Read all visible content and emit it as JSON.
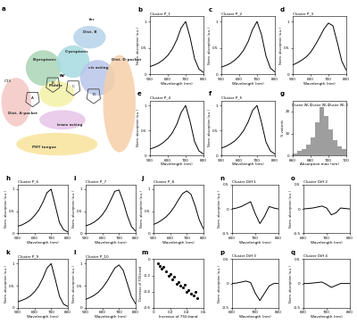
{
  "diagram": {
    "panel": "a",
    "regions": [
      "Dist. A-pocket",
      "B-propionic",
      "C-propionic",
      "Dist. B",
      "Middle",
      "cis acting",
      "trans acting",
      "Dist. D-pocket",
      "PHY tongue",
      "for"
    ],
    "atoms": [
      "C13",
      "A",
      "B",
      "C",
      "D",
      "BV"
    ]
  },
  "chart_data": [
    {
      "panel": "b",
      "type": "line",
      "title": "Cluster P_1",
      "x_label": "Wavelength (nm)",
      "y_label": "Norm. absorption (a.u.)",
      "x": [
        500,
        525,
        550,
        575,
        600,
        625,
        650,
        675,
        700,
        725,
        750,
        775,
        800
      ],
      "values": [
        0.15,
        0.18,
        0.22,
        0.28,
        0.36,
        0.48,
        0.65,
        0.88,
        1.0,
        0.7,
        0.3,
        0.1,
        0.04
      ],
      "color": "#000000",
      "xlim": [
        500,
        800
      ],
      "ylim": [
        0,
        1.1
      ],
      "xticks": [
        500,
        600,
        700,
        800
      ],
      "yticks": [
        0,
        0.5,
        1
      ]
    },
    {
      "panel": "c",
      "type": "line",
      "title": "Cluster P_2",
      "x_label": "Wavelength (nm)",
      "y_label": "Norm. absorption (a.u.)",
      "x": [
        500,
        525,
        550,
        575,
        600,
        625,
        650,
        675,
        700,
        725,
        750,
        775,
        800
      ],
      "values": [
        0.14,
        0.17,
        0.21,
        0.27,
        0.35,
        0.46,
        0.62,
        0.85,
        1.0,
        0.75,
        0.35,
        0.12,
        0.05
      ],
      "color": "#000000",
      "xlim": [
        500,
        800
      ],
      "ylim": [
        0,
        1.1
      ],
      "xticks": [
        500,
        600,
        700,
        800
      ],
      "yticks": [
        0,
        0.5,
        1
      ]
    },
    {
      "panel": "d",
      "type": "line",
      "title": "Cluster P_3",
      "x_label": "Wavelength (nm)",
      "y_label": "Norm. absorption (a.u.)",
      "x": [
        500,
        525,
        550,
        575,
        600,
        625,
        650,
        675,
        700,
        725,
        750,
        775,
        800
      ],
      "values": [
        0.18,
        0.22,
        0.27,
        0.33,
        0.42,
        0.55,
        0.7,
        0.86,
        0.97,
        0.92,
        0.6,
        0.25,
        0.08
      ],
      "color": "#000000",
      "xlim": [
        500,
        800
      ],
      "ylim": [
        0,
        1.1
      ],
      "xticks": [
        500,
        600,
        700,
        800
      ],
      "yticks": [
        0,
        0.5,
        1
      ]
    },
    {
      "panel": "e",
      "type": "line",
      "title": "Cluster P_4",
      "x_label": "Wavelength (nm)",
      "y_label": "Norm. absorption (a.u.)",
      "x": [
        500,
        525,
        550,
        575,
        600,
        625,
        650,
        675,
        700,
        725,
        750,
        775,
        800
      ],
      "values": [
        0.13,
        0.16,
        0.2,
        0.26,
        0.34,
        0.45,
        0.62,
        0.86,
        1.0,
        0.68,
        0.28,
        0.09,
        0.03
      ],
      "color": "#000000",
      "xlim": [
        500,
        800
      ],
      "ylim": [
        0,
        1.1
      ],
      "xticks": [
        500,
        600,
        700,
        800
      ],
      "yticks": [
        0,
        0.5,
        1
      ]
    },
    {
      "panel": "f",
      "type": "line",
      "title": "Cluster P_5",
      "x_label": "Wavelength (nm)",
      "y_label": "Norm. absorption (a.u.)",
      "x": [
        500,
        525,
        550,
        575,
        600,
        625,
        650,
        675,
        700,
        725,
        750,
        775,
        800
      ],
      "values": [
        0.15,
        0.18,
        0.23,
        0.29,
        0.38,
        0.5,
        0.67,
        0.9,
        1.0,
        0.66,
        0.27,
        0.09,
        0.03
      ],
      "color": "#000000",
      "xlim": [
        500,
        800
      ],
      "ylim": [
        0,
        1.1
      ],
      "xticks": [
        500,
        600,
        700,
        800
      ],
      "yticks": [
        0,
        0.5,
        1
      ]
    },
    {
      "panel": "g",
      "type": "histogram",
      "x_label": "Absorption max (nm)",
      "y_label": "% variants",
      "bins": [
        660,
        665,
        670,
        675,
        680,
        685,
        690,
        695,
        700,
        705,
        710,
        715,
        720
      ],
      "counts": [
        1,
        2,
        3,
        5,
        8,
        15,
        22,
        18,
        12,
        7,
        4,
        3
      ],
      "annotations": [
        "Cluster WL 1",
        "Cluster WL 2",
        "Cluster WL 3"
      ],
      "color": "#9e9e9e",
      "xlim": [
        660,
        720
      ],
      "ylim": [
        0,
        25
      ],
      "xticks": [
        660,
        680,
        700,
        720
      ],
      "yticks": [
        0,
        10,
        20
      ]
    },
    {
      "panel": "h",
      "type": "line",
      "title": "Cluster P_6",
      "x_label": "Wavelength (nm)",
      "y_label": "Norm. absorption (a.u.)",
      "x": [
        500,
        525,
        550,
        575,
        600,
        625,
        650,
        675,
        700,
        725,
        750,
        775,
        800
      ],
      "values": [
        0.16,
        0.19,
        0.24,
        0.3,
        0.4,
        0.52,
        0.7,
        0.92,
        1.0,
        0.62,
        0.24,
        0.08,
        0.03
      ],
      "color": "#000000",
      "xlim": [
        500,
        800
      ],
      "ylim": [
        0,
        1.1
      ],
      "xticks": [
        500,
        600,
        700,
        800
      ],
      "yticks": [
        0,
        0.5,
        1
      ]
    },
    {
      "panel": "i",
      "type": "line",
      "title": "Cluster P_7",
      "x_label": "Wavelength (nm)",
      "y_label": "Norm. absorption (a.u.)",
      "x": [
        500,
        525,
        550,
        575,
        600,
        625,
        650,
        675,
        700,
        725,
        750,
        775,
        800
      ],
      "values": [
        0.17,
        0.2,
        0.25,
        0.32,
        0.42,
        0.56,
        0.75,
        0.95,
        0.98,
        0.72,
        0.4,
        0.15,
        0.05
      ],
      "color": "#000000",
      "xlim": [
        500,
        800
      ],
      "ylim": [
        0,
        1.1
      ],
      "xticks": [
        500,
        600,
        700,
        800
      ],
      "yticks": [
        0,
        0.5,
        1
      ]
    },
    {
      "panel": "j",
      "type": "line",
      "title": "Cluster P_8",
      "x_label": "Wavelength (nm)",
      "y_label": "Norm. absorption (a.u.)",
      "x": [
        500,
        525,
        550,
        575,
        600,
        625,
        650,
        675,
        700,
        725,
        750,
        775,
        800
      ],
      "values": [
        0.2,
        0.24,
        0.3,
        0.37,
        0.47,
        0.6,
        0.76,
        0.9,
        0.96,
        0.88,
        0.62,
        0.3,
        0.1
      ],
      "color": "#000000",
      "xlim": [
        500,
        800
      ],
      "ylim": [
        0,
        1.1
      ],
      "xticks": [
        500,
        600,
        700,
        800
      ],
      "yticks": [
        0,
        0.5,
        1
      ]
    },
    {
      "panel": "k",
      "type": "line",
      "title": "Cluster P_9",
      "x_label": "Wavelength (nm)",
      "y_label": "Norm. absorption (a.u.)",
      "x": [
        500,
        525,
        550,
        575,
        600,
        625,
        650,
        675,
        700,
        725,
        750,
        775,
        800
      ],
      "values": [
        0.14,
        0.17,
        0.21,
        0.27,
        0.36,
        0.49,
        0.67,
        0.9,
        1.0,
        0.64,
        0.26,
        0.08,
        0.03
      ],
      "color": "#000000",
      "xlim": [
        500,
        800
      ],
      "ylim": [
        0,
        1.1
      ],
      "xticks": [
        500,
        600,
        700,
        800
      ],
      "yticks": [
        0,
        0.5,
        1
      ]
    },
    {
      "panel": "l",
      "type": "line",
      "title": "Cluster P_10",
      "x_label": "Wavelength (nm)",
      "y_label": "Norm. absorption (a.u.)",
      "x": [
        500,
        525,
        550,
        575,
        600,
        625,
        650,
        675,
        700,
        725,
        750,
        775,
        800
      ],
      "values": [
        0.19,
        0.23,
        0.28,
        0.35,
        0.45,
        0.58,
        0.74,
        0.9,
        0.97,
        0.85,
        0.55,
        0.25,
        0.09
      ],
      "color": "#000000",
      "xlim": [
        500,
        800
      ],
      "ylim": [
        0,
        1.1
      ],
      "xticks": [
        500,
        600,
        700,
        800
      ],
      "yticks": [
        0,
        0.5,
        1
      ]
    },
    {
      "panel": "m",
      "type": "scatter",
      "x_label": "Increase of 750-band",
      "y_label": "Decrease of 700-band",
      "x": [
        0.05,
        0.08,
        0.1,
        0.12,
        0.15,
        0.18,
        0.2,
        0.22,
        0.25,
        0.28,
        0.3,
        0.32,
        0.35,
        0.38,
        0.4,
        0.42,
        0.45,
        0.48,
        0.5,
        0.52
      ],
      "values": [
        -0.05,
        -0.08,
        -0.12,
        -0.1,
        -0.15,
        -0.2,
        -0.18,
        -0.25,
        -0.22,
        -0.3,
        -0.28,
        -0.33,
        -0.35,
        -0.32,
        -0.4,
        -0.38,
        -0.42,
        -0.45,
        -0.4,
        -0.48
      ],
      "color": "#000000",
      "xlim": [
        0,
        0.6
      ],
      "ylim": [
        -0.6,
        0
      ],
      "xticks": [
        0,
        0.2,
        0.4,
        0.6
      ],
      "yticks": [
        -0.6,
        -0.4,
        -0.2,
        0
      ]
    },
    {
      "panel": "n",
      "type": "line",
      "title": "Cluster Diff 1",
      "x_label": "Wavelength (nm)",
      "y_label": "Norm. absorption (a.u.)",
      "x": [
        600,
        620,
        640,
        660,
        680,
        700,
        720,
        740,
        760,
        780,
        800
      ],
      "values": [
        0.0,
        0.02,
        0.05,
        0.1,
        0.15,
        -0.1,
        -0.3,
        -0.15,
        0.05,
        0.02,
        0.0
      ],
      "color": "#000000",
      "xlim": [
        600,
        800
      ],
      "ylim": [
        -0.5,
        0.5
      ],
      "xticks": [
        600,
        700,
        800
      ],
      "yticks": [
        -0.5,
        0,
        0.5
      ]
    },
    {
      "panel": "o",
      "type": "line",
      "title": "Cluster Diff 2",
      "x_label": "Wavelength (nm)",
      "y_label": "Norm. absorption (a.u.)",
      "x": [
        600,
        620,
        640,
        660,
        680,
        700,
        720,
        740,
        760,
        780,
        800
      ],
      "values": [
        0.0,
        0.01,
        0.02,
        0.04,
        0.06,
        0.02,
        -0.12,
        -0.08,
        0.02,
        0.01,
        0.0
      ],
      "color": "#000000",
      "xlim": [
        600,
        800
      ],
      "ylim": [
        -0.5,
        0.5
      ],
      "xticks": [
        600,
        700,
        800
      ],
      "yticks": [
        -0.5,
        0,
        0.5
      ]
    },
    {
      "panel": "p",
      "type": "line",
      "title": "Cluster Diff 3",
      "x_label": "Wavelength (nm)",
      "y_label": "Norm. absorption (a.u.)",
      "x": [
        600,
        620,
        640,
        660,
        680,
        700,
        720,
        740,
        760,
        780,
        800
      ],
      "values": [
        0.0,
        0.01,
        0.03,
        0.05,
        0.02,
        -0.2,
        -0.35,
        -0.2,
        -0.05,
        0.0,
        0.0
      ],
      "color": "#000000",
      "xlim": [
        600,
        800
      ],
      "ylim": [
        -0.5,
        0.5
      ],
      "xticks": [
        600,
        700,
        800
      ],
      "yticks": [
        -0.5,
        0,
        0.5
      ]
    },
    {
      "panel": "q",
      "type": "line",
      "title": "Cluster Diff 4",
      "x_label": "Wavelength (nm)",
      "y_label": "Norm. absorption (a.u.)",
      "x": [
        600,
        620,
        640,
        660,
        680,
        700,
        720,
        740,
        760,
        780,
        800
      ],
      "values": [
        0.0,
        0.0,
        0.01,
        0.02,
        0.03,
        -0.02,
        -0.08,
        -0.04,
        0.0,
        0.0,
        0.0
      ],
      "color": "#000000",
      "xlim": [
        600,
        800
      ],
      "ylim": [
        -0.5,
        0.5
      ],
      "xticks": [
        600,
        700,
        800
      ],
      "yticks": [
        -0.5,
        0,
        0.5
      ]
    }
  ]
}
